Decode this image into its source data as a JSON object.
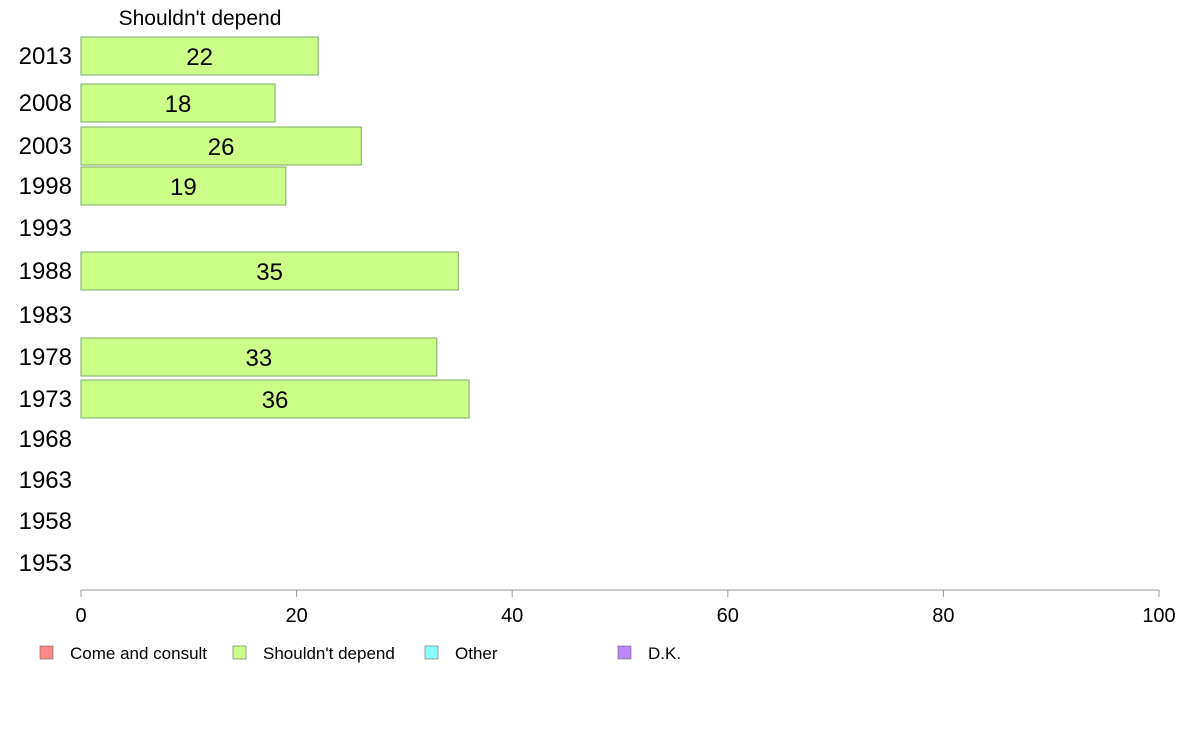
{
  "chart_data": {
    "type": "bar",
    "orientation": "horizontal",
    "series_title": "Shouldn't depend",
    "categories": [
      "2013",
      "2008",
      "2003",
      "1998",
      "1993",
      "1988",
      "1983",
      "1978",
      "1973",
      "1968",
      "1963",
      "1958",
      "1953"
    ],
    "series": [
      {
        "name": "Shouldn't depend",
        "color": "#ccff88",
        "values": [
          22,
          18,
          26,
          19,
          null,
          35,
          null,
          33,
          36,
          null,
          null,
          null,
          null
        ]
      }
    ],
    "xlim": [
      0,
      100
    ],
    "xticks": [
      "0",
      "20",
      "40",
      "60",
      "80",
      "100"
    ],
    "legend": {
      "placement": "bottom-left",
      "items": [
        {
          "label": "Come and consult",
          "color": "#ff8888"
        },
        {
          "label": "Shouldn't depend",
          "color": "#ccff88"
        },
        {
          "label": "Other",
          "color": "#88ffff"
        },
        {
          "label": "D.K.",
          "color": "#bb88ff"
        }
      ]
    },
    "grid": false
  }
}
